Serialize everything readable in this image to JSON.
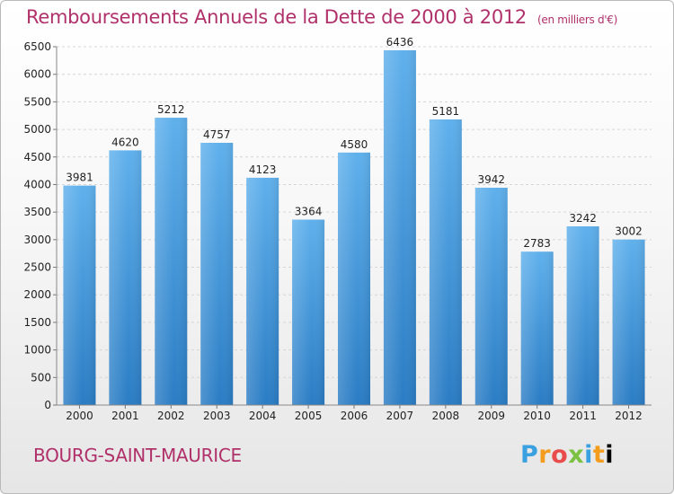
{
  "header": {
    "title": "Remboursements Annuels de la Dette de 2000 à 2012",
    "subtitle": "(en milliers d'€)"
  },
  "footer": {
    "city": "BOURG-SAINT-MAURICE",
    "logo": [
      "P",
      "r",
      "o",
      "x",
      "i",
      "t",
      "i"
    ]
  },
  "colors": {
    "bar_top": "#5fb0ec",
    "bar_bottom": "#2a7cc4",
    "title": "#b0306a",
    "grid": "#d6d6d6"
  },
  "chart_data": {
    "type": "bar",
    "categories": [
      "2000",
      "2001",
      "2002",
      "2003",
      "2004",
      "2005",
      "2006",
      "2007",
      "2008",
      "2009",
      "2010",
      "2011",
      "2012"
    ],
    "values": [
      3981,
      4620,
      5212,
      4757,
      4123,
      3364,
      4580,
      6436,
      5181,
      3942,
      2783,
      3242,
      3002
    ],
    "title": "Remboursements Annuels de la Dette de 2000 à 2012",
    "ylim": [
      0,
      6500
    ],
    "yticks": [
      0,
      500,
      1000,
      1500,
      2000,
      2500,
      3000,
      3500,
      4000,
      4500,
      5000,
      5500,
      6000,
      6500
    ],
    "grid": true,
    "legend": "none"
  }
}
